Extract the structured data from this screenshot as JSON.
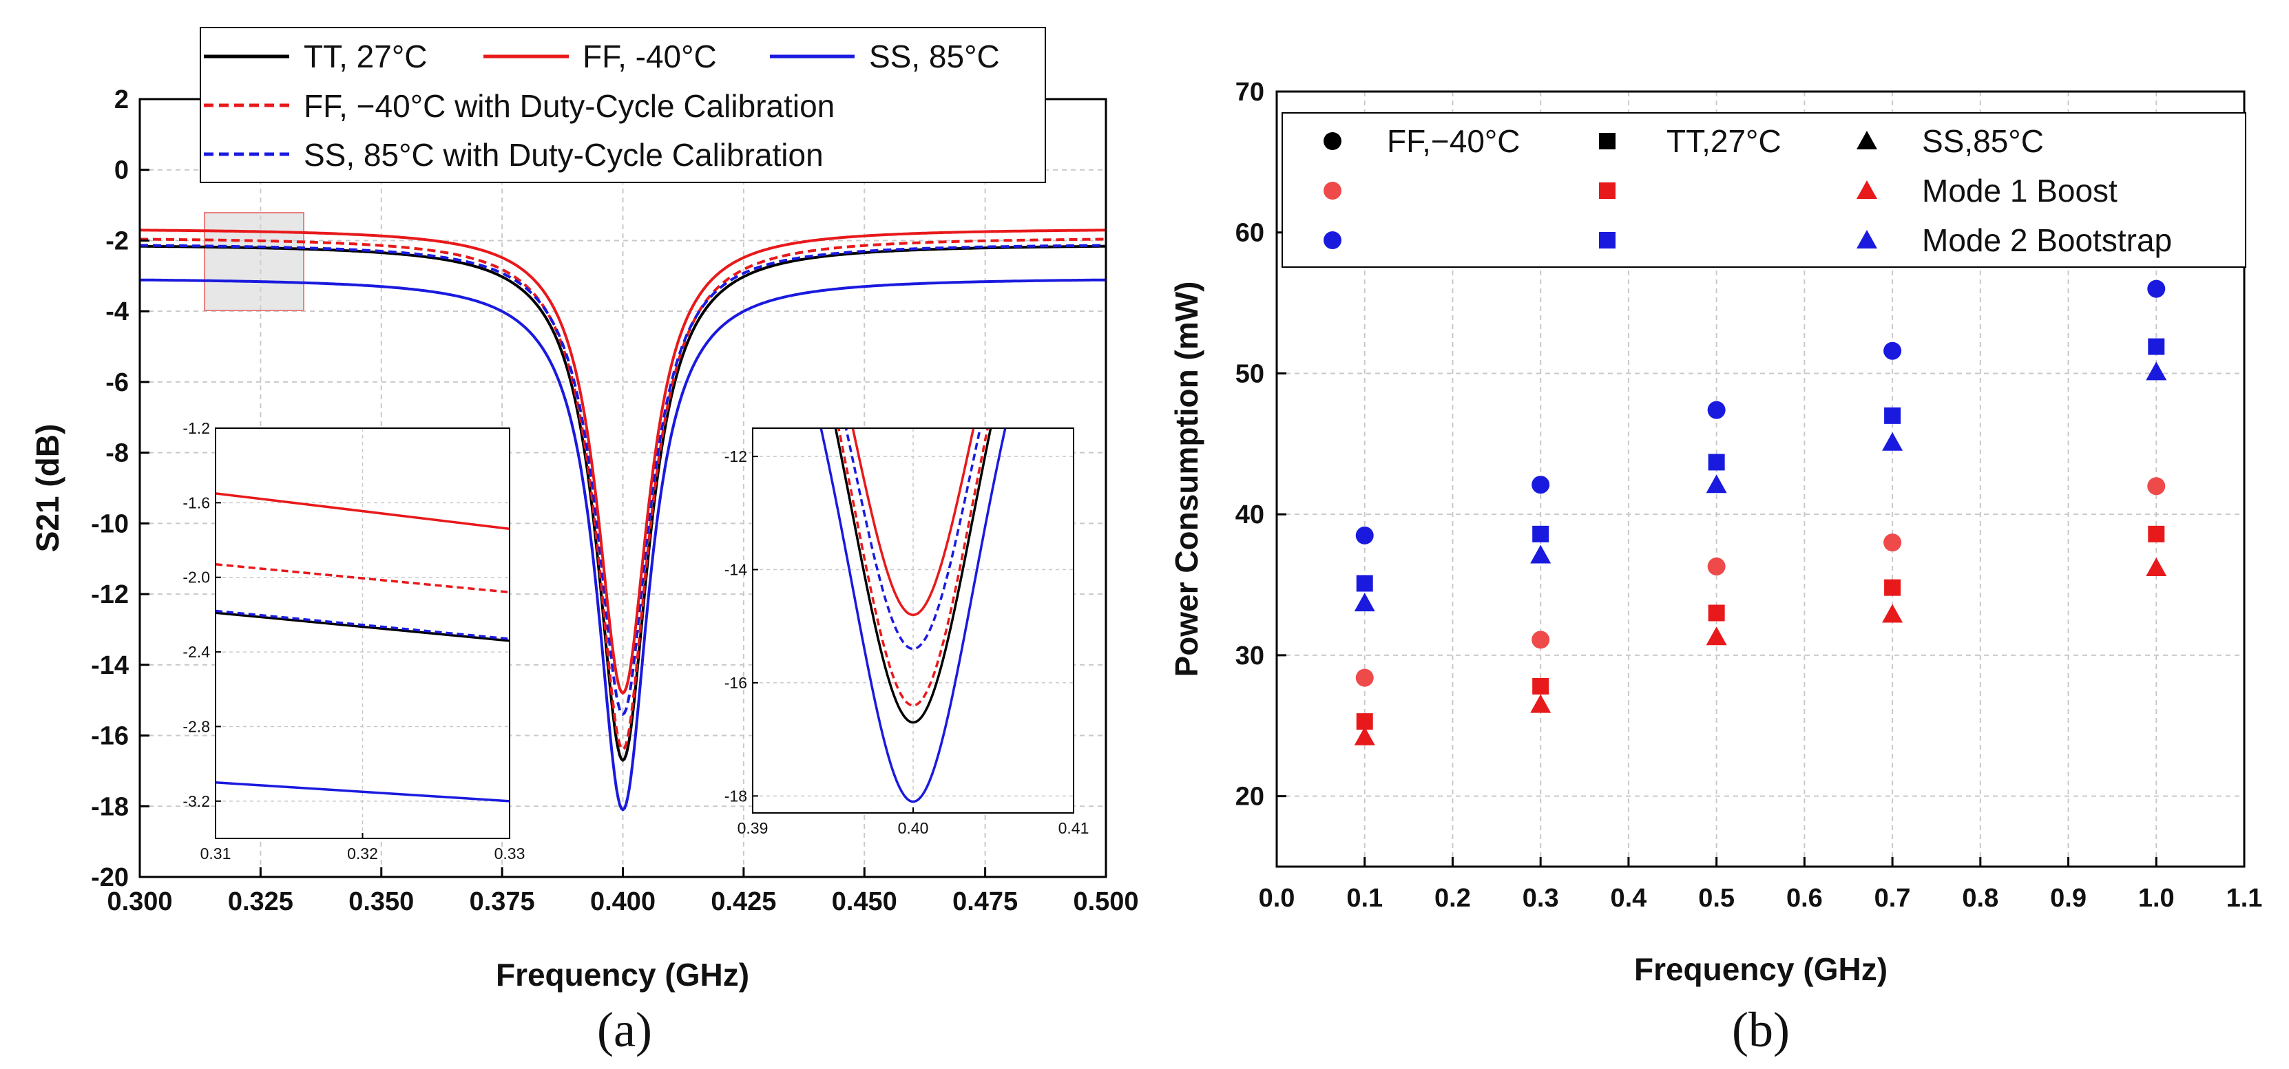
{
  "chart_data": [
    {
      "panel": "(a)",
      "type": "line",
      "xlabel": "Frequency (GHz)",
      "ylabel": "S21 (dB)",
      "xlim": [
        0.3,
        0.5
      ],
      "ylim": [
        -20,
        2
      ],
      "x_ticks": [
        "0.300",
        "0.325",
        "0.350",
        "0.375",
        "0.400",
        "0.425",
        "0.450",
        "0.475",
        "0.500"
      ],
      "y_ticks": [
        "2",
        "0",
        "-2",
        "-4",
        "-6",
        "-8",
        "-10",
        "-12",
        "-14",
        "-16",
        "-18",
        "-20"
      ],
      "grid": true,
      "legend_position": "top",
      "resonance_ghz": 0.4,
      "series": [
        {
          "name": "TT, 27°C",
          "color": "#000000",
          "dash": false,
          "baseline_left": -2.1,
          "baseline_right": -2.1,
          "min": -16.7
        },
        {
          "name": "FF, -40°C",
          "color": "#e8191b",
          "dash": false,
          "baseline_left": -1.65,
          "baseline_right": -1.65,
          "min": -14.8
        },
        {
          "name": "SS, 85°C",
          "color": "#1a1adf",
          "dash": false,
          "baseline_left": -3.05,
          "baseline_right": -3.05,
          "min": -18.1
        },
        {
          "name": "FF, −40°C with Duty-Cycle Calibration",
          "color": "#e8191b",
          "dash": true,
          "baseline_left": -1.9,
          "baseline_right": -1.9,
          "min": -16.4
        },
        {
          "name": "SS, 85°C with Duty-Cycle Calibration",
          "color": "#1a1adf",
          "dash": true,
          "baseline_left": -2.08,
          "baseline_right": -2.08,
          "min": -15.4
        }
      ],
      "insets": [
        {
          "name": "zoom-left",
          "xlim": [
            0.31,
            0.33
          ],
          "ylim": [
            -3.4,
            -1.2
          ],
          "x_ticks": [
            "0.31",
            "0.32",
            "0.33"
          ],
          "y_ticks": [
            "-1.2",
            "-1.6",
            "-2.0",
            "-2.4",
            "-2.8",
            "-3.2"
          ],
          "lines": [
            {
              "series": "FF, -40°C",
              "y_start": -1.55,
              "y_end": -1.74
            },
            {
              "series": "FF, −40°C with Duty-Cycle Calibration",
              "y_start": -1.93,
              "y_end": -2.08
            },
            {
              "series": "TT, 27°C",
              "y_start": -2.19,
              "y_end": -2.34
            },
            {
              "series": "SS, 85°C with Duty-Cycle Calibration",
              "y_start": -2.18,
              "y_end": -2.33
            },
            {
              "series": "SS, 85°C",
              "y_start": -3.1,
              "y_end": -3.2
            }
          ]
        },
        {
          "name": "zoom-right",
          "xlim": [
            0.39,
            0.41
          ],
          "ylim": [
            -18.3,
            -11.5
          ],
          "x_ticks": [
            "0.39",
            "0.40",
            "0.41"
          ],
          "y_ticks": [
            "-12",
            "-14",
            "-16",
            "-18"
          ]
        }
      ]
    },
    {
      "panel": "(b)",
      "type": "scatter",
      "xlabel": "Frequency (GHz)",
      "ylabel": "Power Consumption (mW)",
      "xlim": [
        0,
        1.1
      ],
      "ylim": [
        15,
        70
      ],
      "x_ticks": [
        "0.0",
        "0.1",
        "0.2",
        "0.3",
        "0.4",
        "0.5",
        "0.6",
        "0.7",
        "0.8",
        "0.9",
        "1.0",
        "1.1"
      ],
      "y_ticks": [
        "20",
        "30",
        "40",
        "50",
        "60",
        "70"
      ],
      "grid": true,
      "legend_position": "top",
      "x": [
        0.1,
        0.3,
        0.5,
        0.7,
        1.0
      ],
      "series": [
        {
          "name": "FF,−40°C Mode 1 Boost",
          "marker": "circle",
          "color": "#ef4a4a",
          "values": [
            28.4,
            31.1,
            36.3,
            38.0,
            42.0
          ]
        },
        {
          "name": "TT,27°C Mode 1 Boost",
          "marker": "square",
          "color": "#e8191b",
          "values": [
            25.3,
            27.8,
            33.0,
            34.8,
            38.6
          ]
        },
        {
          "name": "SS,85°C Mode 1 Boost",
          "marker": "triangle",
          "color": "#e8191b",
          "values": [
            24.2,
            26.5,
            31.3,
            32.9,
            36.2
          ]
        },
        {
          "name": "FF,−40°C Mode 2 Bootstrap",
          "marker": "circle",
          "color": "#1a1adf",
          "values": [
            38.5,
            42.1,
            47.4,
            51.6,
            56.0
          ]
        },
        {
          "name": "TT,27°C Mode 2 Bootstrap",
          "marker": "square",
          "color": "#1a1adf",
          "values": [
            35.1,
            38.6,
            43.7,
            47.0,
            51.9
          ]
        },
        {
          "name": "SS,85°C Mode 2 Bootstrap",
          "marker": "triangle",
          "color": "#1a1adf",
          "values": [
            33.7,
            37.1,
            42.1,
            45.1,
            50.1
          ]
        }
      ],
      "legend": {
        "corners": [
          "FF,−40°C",
          "TT,27°C",
          "SS,85°C"
        ],
        "modes": [
          "Mode 1 Boost",
          "Mode 2 Bootstrap"
        ]
      }
    }
  ],
  "captions": {
    "a": "(a)",
    "b": "(b)"
  }
}
